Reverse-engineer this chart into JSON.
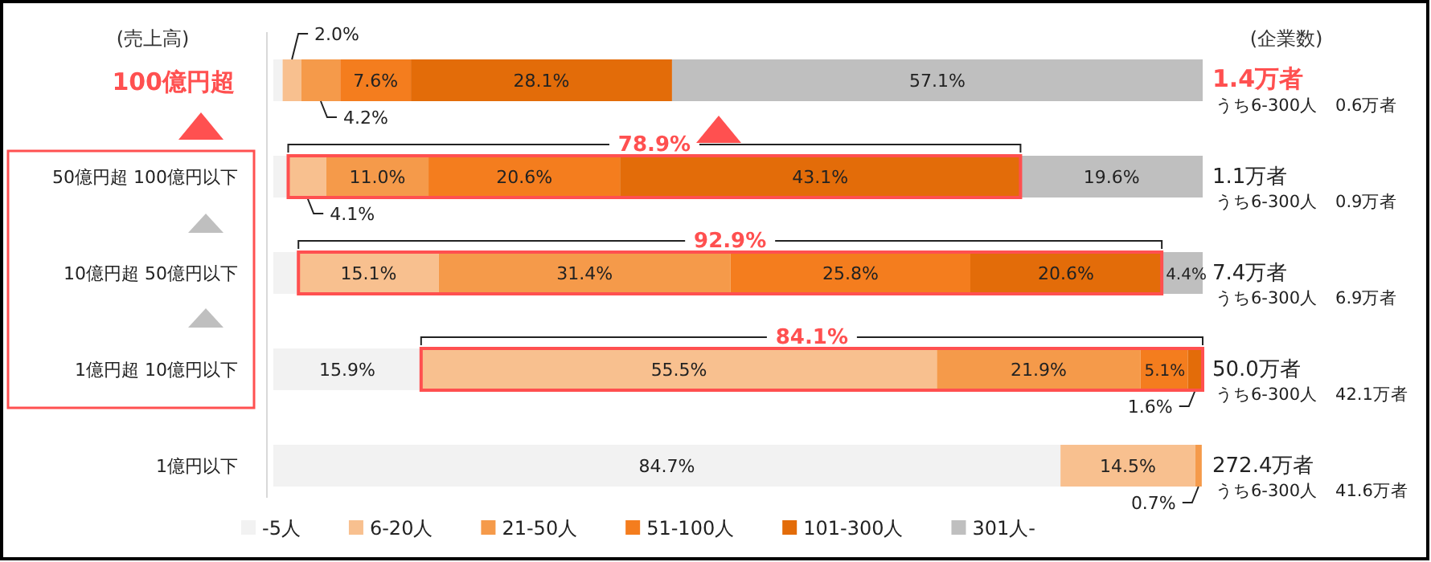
{
  "chart_data": {
    "type": "bar",
    "orientation": "horizontal",
    "stacked": true,
    "ylabel": "(売上高)",
    "y2label": "(企業数)",
    "legend": "bottom",
    "categories": [
      "100億円超",
      "50億円超 100億円以下",
      "10億円超 50億円以下",
      "1億円超 10億円以下",
      "1億円以下"
    ],
    "series": [
      {
        "name": "-5人",
        "color": "#f2f2f2",
        "values": [
          1.0,
          1.6,
          2.7,
          15.9,
          84.7
        ],
        "value_labels": [
          null,
          null,
          null,
          "15.9%",
          "84.7%"
        ]
      },
      {
        "name": "6-20人",
        "color": "#f8c08f",
        "values": [
          2.0,
          4.1,
          15.1,
          55.5,
          14.5
        ],
        "value_labels": [
          "2.0%",
          "4.1%",
          "15.1%",
          "55.5%",
          "14.5%"
        ]
      },
      {
        "name": "21-50人",
        "color": "#f59a4a",
        "values": [
          4.2,
          11.0,
          31.4,
          21.9,
          0.7
        ],
        "value_labels": [
          "4.2%",
          "11.0%",
          "31.4%",
          "21.9%",
          "0.7%"
        ]
      },
      {
        "name": "51-100人",
        "color": "#f47d1e",
        "values": [
          7.6,
          20.6,
          25.8,
          5.1,
          0
        ],
        "value_labels": [
          "7.6%",
          "20.6%",
          "25.8%",
          "5.1%",
          null
        ]
      },
      {
        "name": "101-300人",
        "color": "#e36c09",
        "values": [
          28.1,
          43.1,
          20.6,
          1.6,
          0
        ],
        "value_labels": [
          "28.1%",
          "43.1%",
          "20.6%",
          "1.6%",
          null
        ]
      },
      {
        "name": "301人-",
        "color": "#bfbfbf",
        "values": [
          57.1,
          19.6,
          4.4,
          0,
          0
        ],
        "value_labels": [
          "57.1%",
          "19.6%",
          "4.4%",
          null,
          null
        ]
      }
    ],
    "annotations": [
      "1.4万者",
      "うち6-300人　0.6万者",
      "1.1万者",
      "うち6-300人　0.9万者",
      "7.4万者",
      "うち6-300人　6.9万者",
      "50.0万者",
      "うち6-300人　42.1万者",
      "272.4万者",
      "うち6-300人　41.6万者",
      "78.9%",
      "92.9%",
      "84.1%"
    ]
  }
}
